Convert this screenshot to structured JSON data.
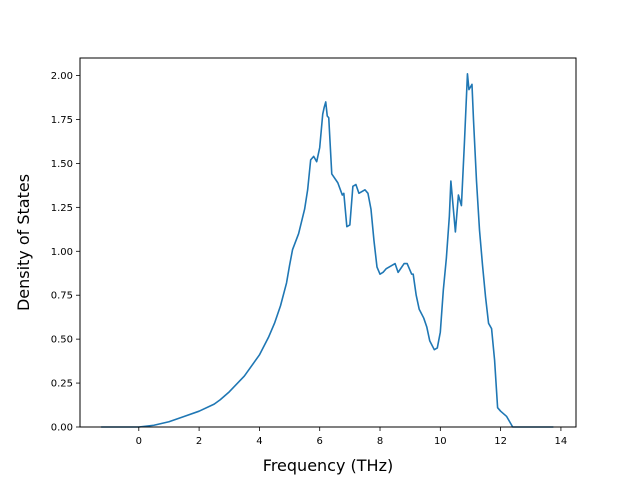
{
  "chart_data": {
    "type": "line",
    "title": "",
    "xlabel": "Frequency (THz)",
    "ylabel": "Density of States",
    "xlim": [
      -1.95,
      14.5
    ],
    "ylim": [
      0,
      2.1
    ],
    "x_ticks": [
      0,
      2,
      4,
      6,
      8,
      10,
      12,
      14
    ],
    "y_ticks": [
      0.0,
      0.25,
      0.5,
      0.75,
      1.0,
      1.25,
      1.5,
      1.75,
      2.0
    ],
    "x_tick_labels": [
      "0",
      "2",
      "4",
      "6",
      "8",
      "10",
      "12",
      "14"
    ],
    "y_tick_labels": [
      "0.00",
      "0.25",
      "0.50",
      "0.75",
      "1.00",
      "1.25",
      "1.50",
      "1.75",
      "2.00"
    ],
    "grid": false,
    "legend": "none",
    "line_color": "#1f77b4",
    "series": [
      {
        "x": [
          -1.25,
          -0.5,
          0.0,
          0.5,
          1.0,
          1.5,
          2.0,
          2.5,
          2.7,
          3.0,
          3.5,
          4.0,
          4.3,
          4.5,
          4.7,
          4.9,
          5.0,
          5.1,
          5.3,
          5.5,
          5.6,
          5.7,
          5.8,
          5.9,
          6.0,
          6.1,
          6.15,
          6.2,
          6.25,
          6.3,
          6.4,
          6.6,
          6.75,
          6.8,
          6.9,
          7.0,
          7.1,
          7.2,
          7.3,
          7.5,
          7.6,
          7.7,
          7.8,
          7.9,
          8.0,
          8.1,
          8.2,
          8.3,
          8.5,
          8.6,
          8.8,
          8.9,
          9.05,
          9.1,
          9.2,
          9.3,
          9.45,
          9.55,
          9.65,
          9.8,
          9.9,
          10.0,
          10.1,
          10.2,
          10.3,
          10.35,
          10.5,
          10.6,
          10.7,
          10.8,
          10.9,
          10.95,
          11.05,
          11.1,
          11.2,
          11.3,
          11.4,
          11.5,
          11.6,
          11.7,
          11.75,
          11.8,
          11.9,
          12.0,
          12.2,
          12.4,
          12.5,
          13.0,
          13.75
        ],
        "y": [
          0.0,
          0.0,
          0.0,
          0.01,
          0.03,
          0.06,
          0.09,
          0.13,
          0.155,
          0.2,
          0.29,
          0.41,
          0.51,
          0.59,
          0.69,
          0.82,
          0.92,
          1.01,
          1.1,
          1.24,
          1.35,
          1.52,
          1.54,
          1.51,
          1.59,
          1.78,
          1.82,
          1.85,
          1.77,
          1.76,
          1.44,
          1.39,
          1.32,
          1.33,
          1.14,
          1.15,
          1.37,
          1.38,
          1.33,
          1.35,
          1.33,
          1.24,
          1.06,
          0.91,
          0.87,
          0.88,
          0.9,
          0.91,
          0.93,
          0.88,
          0.93,
          0.93,
          0.87,
          0.87,
          0.75,
          0.67,
          0.62,
          0.57,
          0.49,
          0.44,
          0.45,
          0.54,
          0.78,
          0.96,
          1.2,
          1.4,
          1.11,
          1.32,
          1.26,
          1.62,
          2.01,
          1.92,
          1.95,
          1.75,
          1.4,
          1.12,
          0.92,
          0.74,
          0.59,
          0.56,
          0.47,
          0.38,
          0.11,
          0.09,
          0.06,
          0.0,
          0.0,
          0.0,
          0.0
        ]
      }
    ]
  }
}
